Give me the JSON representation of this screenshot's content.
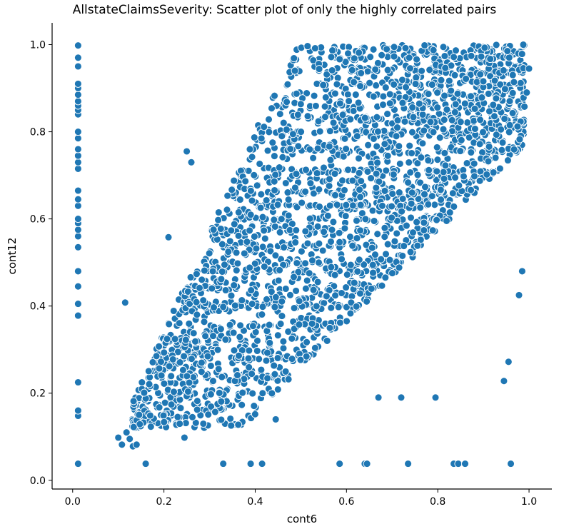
{
  "chart_data": {
    "type": "scatter",
    "title": "AllstateClaimsSeverity: Scatter plot of only the highly correlated pairs",
    "xlabel": "cont6",
    "ylabel": "cont12",
    "xlim": [
      -0.045,
      1.05
    ],
    "ylim": [
      -0.02,
      1.05
    ],
    "xticks": [
      0.0,
      0.2,
      0.4,
      0.6,
      0.8,
      1.0
    ],
    "xtick_labels": [
      "0.0",
      "0.2",
      "0.4",
      "0.6",
      "0.8",
      "1.0"
    ],
    "yticks": [
      0.0,
      0.2,
      0.4,
      0.6,
      0.8,
      1.0
    ],
    "ytick_labels": [
      "0.0",
      "0.2",
      "0.4",
      "0.6",
      "0.8",
      "1.0"
    ],
    "grid": false,
    "marker_color": "#1f77b4",
    "marker_edge_color": "#ffffff",
    "series": [
      {
        "points": [
          [
            0.012,
            0.038
          ],
          [
            0.012,
            0.148
          ],
          [
            0.012,
            0.16
          ],
          [
            0.012,
            0.225
          ],
          [
            0.012,
            0.378
          ],
          [
            0.012,
            0.405
          ],
          [
            0.012,
            0.445
          ],
          [
            0.012,
            0.48
          ],
          [
            0.012,
            0.535
          ],
          [
            0.012,
            0.56
          ],
          [
            0.012,
            0.575
          ],
          [
            0.012,
            0.59
          ],
          [
            0.012,
            0.6
          ],
          [
            0.012,
            0.63
          ],
          [
            0.012,
            0.645
          ],
          [
            0.012,
            0.665
          ],
          [
            0.012,
            0.715
          ],
          [
            0.012,
            0.73
          ],
          [
            0.012,
            0.745
          ],
          [
            0.012,
            0.76
          ],
          [
            0.012,
            0.785
          ],
          [
            0.012,
            0.8
          ],
          [
            0.012,
            0.84
          ],
          [
            0.012,
            0.85
          ],
          [
            0.012,
            0.86
          ],
          [
            0.012,
            0.87
          ],
          [
            0.012,
            0.885
          ],
          [
            0.012,
            0.9
          ],
          [
            0.012,
            0.91
          ],
          [
            0.012,
            0.95
          ],
          [
            0.012,
            0.97
          ],
          [
            0.012,
            0.998
          ],
          [
            0.1,
            0.098
          ],
          [
            0.108,
            0.082
          ],
          [
            0.115,
            0.408
          ],
          [
            0.118,
            0.11
          ],
          [
            0.125,
            0.095
          ],
          [
            0.132,
            0.078
          ],
          [
            0.14,
            0.082
          ],
          [
            0.16,
            0.038
          ],
          [
            0.21,
            0.558
          ],
          [
            0.245,
            0.098
          ],
          [
            0.25,
            0.755
          ],
          [
            0.26,
            0.73
          ],
          [
            0.33,
            0.038
          ],
          [
            0.39,
            0.038
          ],
          [
            0.415,
            0.038
          ],
          [
            0.445,
            0.14
          ],
          [
            0.585,
            0.038
          ],
          [
            0.64,
            0.038
          ],
          [
            0.645,
            0.038
          ],
          [
            0.67,
            0.19
          ],
          [
            0.72,
            0.19
          ],
          [
            0.735,
            0.038
          ],
          [
            0.795,
            0.19
          ],
          [
            0.835,
            0.038
          ],
          [
            0.845,
            0.038
          ],
          [
            0.86,
            0.038
          ],
          [
            0.96,
            0.038
          ],
          [
            0.945,
            0.228
          ],
          [
            0.955,
            0.272
          ],
          [
            0.978,
            0.425
          ],
          [
            0.985,
            0.48
          ],
          [
            1.0,
            0.945
          ],
          [
            0.995,
            0.89
          ]
        ]
      }
    ]
  }
}
